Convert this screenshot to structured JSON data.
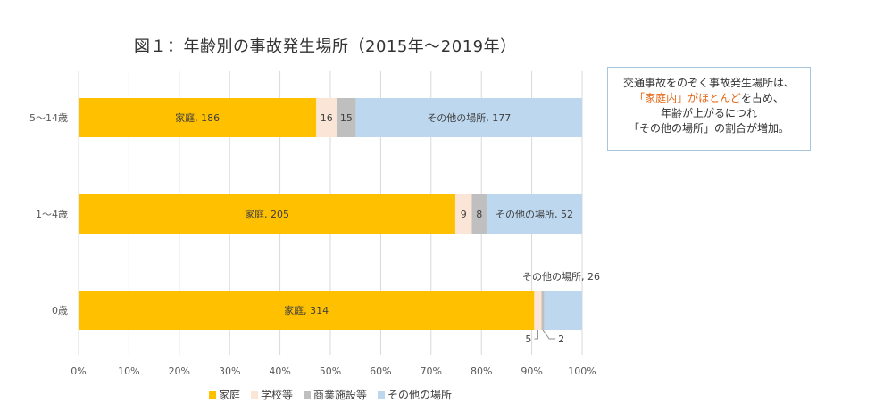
{
  "title": "図１：年齢別の事故発生場所（2015年〜2019年）",
  "chart_data": {
    "type": "bar",
    "orientation": "horizontal",
    "stacked": "percent",
    "categories": [
      "5〜14歳",
      "1〜4歳",
      "0歳"
    ],
    "series": [
      {
        "name": "家庭",
        "color": "#ffc000",
        "values": [
          186,
          205,
          314
        ]
      },
      {
        "name": "学校等",
        "color": "#fbe5d6",
        "values": [
          16,
          9,
          5
        ]
      },
      {
        "name": "商業施設等",
        "color": "#bfbfbf",
        "values": [
          15,
          8,
          2
        ]
      },
      {
        "name": "その他の場所",
        "color": "#bdd7ee",
        "values": [
          177,
          52,
          26
        ]
      }
    ],
    "xlim": [
      0,
      100
    ],
    "x_ticks": [
      "0%",
      "10%",
      "20%",
      "30%",
      "40%",
      "50%",
      "60%",
      "70%",
      "80%",
      "90%",
      "100%"
    ],
    "grid": true,
    "legend": "bottom",
    "data_labels": {
      "5〜14歳": [
        "家庭, 186",
        "16",
        "15",
        "その他の場所, 177"
      ],
      "1〜4歳": [
        "家庭, 205",
        "9",
        "8",
        "その他の場所, 52"
      ],
      "0歳": [
        "家庭, 314",
        "5",
        "2",
        "その他の場所, 26"
      ]
    }
  },
  "callout": {
    "line1": "交通事故をのぞく事故発生場所は、",
    "line2_highlight": "「家庭内」がほとんど",
    "line2_rest": "を占め、",
    "line3": "年齢が上がるにつれ",
    "line4": "「その他の場所」の割合が増加。"
  }
}
